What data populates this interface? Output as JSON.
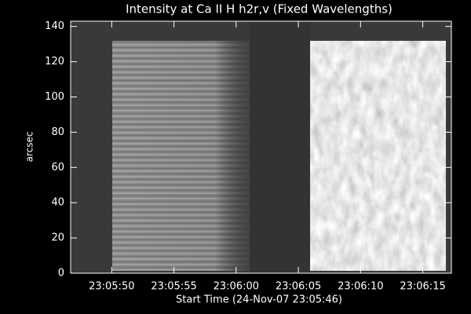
{
  "chart_data": {
    "type": "image",
    "title": "Intensity at Ca II H h2r,v (Fixed Wavelengths)",
    "xlabel": "Start Time (24-Nov-07 23:05:46)",
    "ylabel": "arcsec",
    "xlim": [
      0.7,
      31.3
    ],
    "xticks": [
      {
        "value": 4,
        "label": "23:05:50"
      },
      {
        "value": 9,
        "label": "23:05:55"
      },
      {
        "value": 14,
        "label": "23:06:00"
      },
      {
        "value": 19,
        "label": "23:06:05"
      },
      {
        "value": 24,
        "label": "23:06:10"
      },
      {
        "value": 29,
        "label": "23:06:15"
      }
    ],
    "ylim": [
      0,
      143
    ],
    "yticks": [
      0,
      20,
      40,
      60,
      80,
      100,
      120,
      140
    ]
  }
}
